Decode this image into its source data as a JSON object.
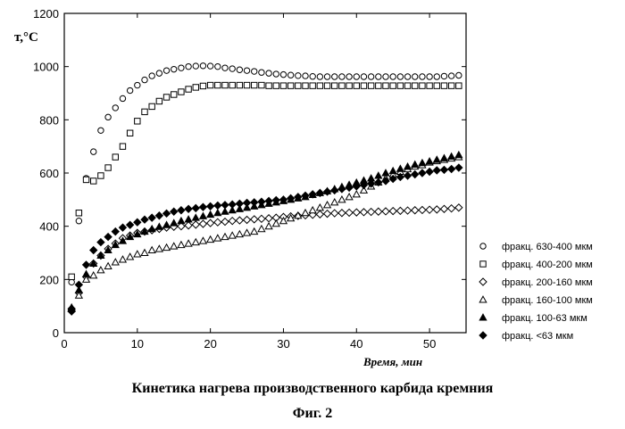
{
  "chart_data": {
    "type": "scatter",
    "title": "Кинетика нагрева производственного карбида кремния",
    "subtitle": "Фиг. 2",
    "xlabel": "Время, мин",
    "ylabel": "т,°С",
    "xlim": [
      0,
      55
    ],
    "ylim": [
      0,
      1200
    ],
    "xticks": [
      0,
      10,
      20,
      30,
      40,
      50
    ],
    "yticks": [
      0,
      200,
      400,
      600,
      800,
      1000,
      1200
    ],
    "legend_position": "right",
    "series": [
      {
        "name": "фракц. 630-400 мкм",
        "marker": "circle-open",
        "x": [
          1,
          2,
          3,
          4,
          5,
          6,
          7,
          8,
          9,
          10,
          11,
          12,
          13,
          14,
          15,
          16,
          17,
          18,
          19,
          20,
          21,
          22,
          23,
          24,
          25,
          26,
          27,
          28,
          29,
          30,
          31,
          32,
          33,
          34,
          35,
          36,
          37,
          38,
          39,
          40,
          41,
          42,
          43,
          44,
          45,
          46,
          47,
          48,
          49,
          50,
          51,
          52,
          53,
          54
        ],
        "y": [
          190,
          420,
          580,
          680,
          760,
          810,
          845,
          880,
          910,
          930,
          950,
          965,
          975,
          985,
          990,
          995,
          1000,
          1002,
          1003,
          1002,
          1000,
          995,
          992,
          988,
          985,
          982,
          978,
          975,
          972,
          970,
          968,
          966,
          965,
          963,
          962,
          962,
          962,
          962,
          962,
          962,
          962,
          962,
          962,
          962,
          962,
          962,
          962,
          962,
          962,
          962,
          962,
          964,
          965,
          967
        ]
      },
      {
        "name": "фракц. 400-200 мкм",
        "marker": "square-open",
        "x": [
          1,
          2,
          3,
          4,
          5,
          6,
          7,
          8,
          9,
          10,
          11,
          12,
          13,
          14,
          15,
          16,
          17,
          18,
          19,
          20,
          21,
          22,
          23,
          24,
          25,
          26,
          27,
          28,
          29,
          30,
          31,
          32,
          33,
          34,
          35,
          36,
          37,
          38,
          39,
          40,
          41,
          42,
          43,
          44,
          45,
          46,
          47,
          48,
          49,
          50,
          51,
          52,
          53,
          54
        ],
        "y": [
          210,
          450,
          575,
          570,
          590,
          620,
          660,
          700,
          750,
          795,
          830,
          850,
          870,
          885,
          895,
          905,
          915,
          922,
          927,
          930,
          930,
          930,
          930,
          930,
          930,
          930,
          930,
          928,
          928,
          928,
          928,
          928,
          928,
          928,
          928,
          928,
          928,
          928,
          928,
          928,
          928,
          928,
          928,
          928,
          928,
          928,
          928,
          928,
          928,
          928,
          928,
          928,
          928,
          928
        ]
      },
      {
        "name": "фракц. 200-160 мкм",
        "marker": "diamond-open",
        "x": [
          1,
          2,
          3,
          4,
          5,
          6,
          7,
          8,
          9,
          10,
          11,
          12,
          13,
          14,
          15,
          16,
          17,
          18,
          19,
          20,
          21,
          22,
          23,
          24,
          25,
          26,
          27,
          28,
          29,
          30,
          31,
          32,
          33,
          34,
          35,
          36,
          37,
          38,
          39,
          40,
          41,
          42,
          43,
          44,
          45,
          46,
          47,
          48,
          49,
          50,
          51,
          52,
          53,
          54
        ],
        "y": [
          90,
          150,
          210,
          260,
          290,
          315,
          335,
          355,
          365,
          375,
          380,
          385,
          390,
          395,
          398,
          400,
          403,
          406,
          409,
          412,
          415,
          417,
          420,
          422,
          424,
          426,
          428,
          430,
          432,
          435,
          437,
          439,
          441,
          443,
          445,
          447,
          449,
          450,
          451,
          452,
          453,
          454,
          455,
          456,
          457,
          458,
          459,
          460,
          461,
          462,
          463,
          465,
          467,
          470
        ]
      },
      {
        "name": "фракц. 160-100 мкм",
        "marker": "triangle-open",
        "x": [
          1,
          2,
          3,
          4,
          5,
          6,
          7,
          8,
          9,
          10,
          11,
          12,
          13,
          14,
          15,
          16,
          17,
          18,
          19,
          20,
          21,
          22,
          23,
          24,
          25,
          26,
          27,
          28,
          29,
          30,
          31,
          32,
          33,
          34,
          35,
          36,
          37,
          38,
          39,
          40,
          41,
          42,
          43,
          44,
          45,
          46,
          47,
          48,
          49,
          50,
          51,
          52,
          53,
          54
        ],
        "y": [
          90,
          140,
          200,
          215,
          235,
          250,
          265,
          275,
          285,
          295,
          300,
          310,
          315,
          320,
          325,
          330,
          335,
          340,
          345,
          350,
          355,
          360,
          365,
          370,
          375,
          380,
          390,
          400,
          410,
          420,
          430,
          440,
          450,
          460,
          470,
          480,
          490,
          500,
          510,
          520,
          535,
          550,
          565,
          580,
          595,
          605,
          615,
          625,
          630,
          640,
          645,
          650,
          655,
          660
        ]
      },
      {
        "name": "фракц. 100-63 мкм",
        "marker": "triangle-filled",
        "x": [
          1,
          2,
          3,
          4,
          5,
          6,
          7,
          8,
          9,
          10,
          11,
          12,
          13,
          14,
          15,
          16,
          17,
          18,
          19,
          20,
          21,
          22,
          23,
          24,
          25,
          26,
          27,
          28,
          29,
          30,
          31,
          32,
          33,
          34,
          35,
          36,
          37,
          38,
          39,
          40,
          41,
          42,
          43,
          44,
          45,
          46,
          47,
          48,
          49,
          50,
          51,
          52,
          53,
          54
        ],
        "y": [
          95,
          160,
          220,
          260,
          290,
          310,
          330,
          345,
          360,
          370,
          380,
          390,
          398,
          405,
          412,
          420,
          426,
          432,
          438,
          444,
          450,
          455,
          460,
          465,
          470,
          475,
          480,
          485,
          490,
          495,
          500,
          505,
          510,
          518,
          525,
          532,
          540,
          548,
          556,
          564,
          572,
          580,
          590,
          600,
          608,
          616,
          624,
          632,
          638,
          644,
          650,
          656,
          662,
          668
        ]
      },
      {
        "name": "фракц. <63 мкм",
        "marker": "diamond-filled",
        "x": [
          1,
          2,
          3,
          4,
          5,
          6,
          7,
          8,
          9,
          10,
          11,
          12,
          13,
          14,
          15,
          16,
          17,
          18,
          19,
          20,
          21,
          22,
          23,
          24,
          25,
          26,
          27,
          28,
          29,
          30,
          31,
          32,
          33,
          34,
          35,
          36,
          37,
          38,
          39,
          40,
          41,
          42,
          43,
          44,
          45,
          46,
          47,
          48,
          49,
          50,
          51,
          52,
          53,
          54
        ],
        "y": [
          80,
          180,
          255,
          310,
          340,
          360,
          380,
          395,
          405,
          415,
          425,
          432,
          440,
          448,
          455,
          460,
          465,
          468,
          472,
          475,
          478,
          480,
          482,
          485,
          488,
          490,
          492,
          495,
          498,
          500,
          505,
          510,
          515,
          520,
          525,
          530,
          535,
          540,
          545,
          550,
          555,
          560,
          565,
          570,
          578,
          585,
          590,
          595,
          600,
          605,
          610,
          612,
          615,
          620
        ]
      }
    ]
  }
}
